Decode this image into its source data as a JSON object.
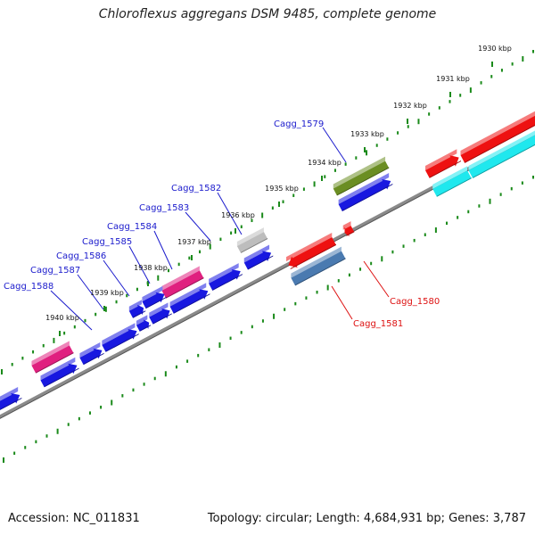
{
  "title": "Chloroflexus aggregans DSM 9485, complete genome",
  "footer": {
    "accession": "Accession: NC_011831",
    "stats": "Topology: circular; Length: 4,684,931 bp; Genes: 3,787"
  },
  "colors": {
    "backbone": "#8a8a8a",
    "ticks": "#1a8a1a",
    "forward_label": "#1a1acc",
    "reverse_label": "#dd1111",
    "blue": "#1818e0",
    "magenta": "#e0207f",
    "olive": "#6b8e23",
    "gray": "#bdbdbd",
    "red": "#ee1111",
    "steel": "#4a7ab0",
    "cyan": "#1fe8ee"
  },
  "scale_labels": [
    "1930 kbp",
    "1931 kbp",
    "1932 kbp",
    "1933 kbp",
    "1934 kbp",
    "1935 kbp",
    "1936 kbp",
    "1937 kbp",
    "1938 kbp",
    "1939 kbp",
    "1940 kbp"
  ],
  "gene_labels": [
    {
      "text": "Cagg_1579",
      "strand": "forward"
    },
    {
      "text": "Cagg_1582",
      "strand": "forward"
    },
    {
      "text": "Cagg_1583",
      "strand": "forward"
    },
    {
      "text": "Cagg_1584",
      "strand": "forward"
    },
    {
      "text": "Cagg_1585",
      "strand": "forward"
    },
    {
      "text": "Cagg_1586",
      "strand": "forward"
    },
    {
      "text": "Cagg_1587",
      "strand": "forward"
    },
    {
      "text": "Cagg_1588",
      "strand": "forward"
    },
    {
      "text": "Cagg_1580",
      "strand": "reverse"
    },
    {
      "text": "Cagg_1581",
      "strand": "reverse"
    }
  ]
}
